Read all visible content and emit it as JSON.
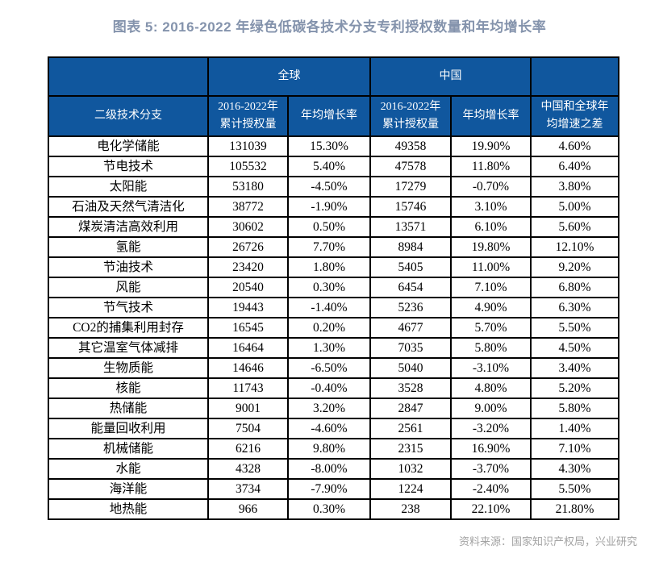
{
  "title": "图表 5: 2016-2022 年绿色低碳各技术分支专利授权数量和年均增长率",
  "source": "资料来源：国家知识产权局，兴业研究",
  "colors": {
    "header_bg": "#10579e",
    "header_text": "#ffffff",
    "title_text": "#8493ac",
    "source_text": "#a3a3a3",
    "table_border": "#000000"
  },
  "header": {
    "corner": "",
    "global_group": "全球",
    "china_group": "中国",
    "diff_group_corner": "",
    "cols": [
      "二级技术分支",
      "2016-2022年\n累计授权量",
      "年均增长率",
      "2016-2022年\n累计授权量",
      "年均增长率",
      "中国和全球年\n均增速之差"
    ]
  },
  "chart_data": {
    "type": "table",
    "title": "图表 5: 2016-2022 年绿色低碳各技术分支专利授权数量和年均增长率",
    "column_groups": [
      {
        "label": "",
        "span": 1
      },
      {
        "label": "全球",
        "span": 2
      },
      {
        "label": "中国",
        "span": 2
      },
      {
        "label": "",
        "span": 1
      }
    ],
    "columns": [
      "二级技术分支",
      "全球 2016-2022年累计授权量",
      "全球 年均增长率",
      "中国 2016-2022年累计授权量",
      "中国 年均增长率",
      "中国和全球年均增速之差"
    ],
    "rows": [
      [
        "电化学储能",
        "131039",
        "15.30%",
        "49358",
        "19.90%",
        "4.60%"
      ],
      [
        "节电技术",
        "105532",
        "5.40%",
        "47578",
        "11.80%",
        "6.40%"
      ],
      [
        "太阳能",
        "53180",
        "-4.50%",
        "17279",
        "-0.70%",
        "3.80%"
      ],
      [
        "石油及天然气清洁化",
        "38772",
        "-1.90%",
        "15746",
        "3.10%",
        "5.00%"
      ],
      [
        "煤炭清洁高效利用",
        "30602",
        "0.50%",
        "13571",
        "6.10%",
        "5.60%"
      ],
      [
        "氢能",
        "26726",
        "7.70%",
        "8984",
        "19.80%",
        "12.10%"
      ],
      [
        "节油技术",
        "23420",
        "1.80%",
        "5405",
        "11.00%",
        "9.20%"
      ],
      [
        "风能",
        "20540",
        "0.30%",
        "6454",
        "7.10%",
        "6.80%"
      ],
      [
        "节气技术",
        "19443",
        "-1.40%",
        "5236",
        "4.90%",
        "6.30%"
      ],
      [
        "CO2的捕集利用封存",
        "16545",
        "0.20%",
        "4677",
        "5.70%",
        "5.50%"
      ],
      [
        "其它温室气体减排",
        "16464",
        "1.30%",
        "7035",
        "5.80%",
        "4.50%"
      ],
      [
        "生物质能",
        "14646",
        "-6.50%",
        "5040",
        "-3.10%",
        "3.40%"
      ],
      [
        "核能",
        "11743",
        "-0.40%",
        "3528",
        "4.80%",
        "5.20%"
      ],
      [
        "热储能",
        "9001",
        "3.20%",
        "2847",
        "9.00%",
        "5.80%"
      ],
      [
        "能量回收利用",
        "7504",
        "-4.60%",
        "2561",
        "-3.20%",
        "1.40%"
      ],
      [
        "机械储能",
        "6216",
        "9.80%",
        "2315",
        "16.90%",
        "7.10%"
      ],
      [
        "水能",
        "4328",
        "-8.00%",
        "1032",
        "-3.70%",
        "4.30%"
      ],
      [
        "海洋能",
        "3734",
        "-7.90%",
        "1224",
        "-2.40%",
        "5.50%"
      ],
      [
        "地热能",
        "966",
        "0.30%",
        "238",
        "22.10%",
        "21.80%"
      ]
    ],
    "source": "资料来源：国家知识产权局，兴业研究"
  }
}
